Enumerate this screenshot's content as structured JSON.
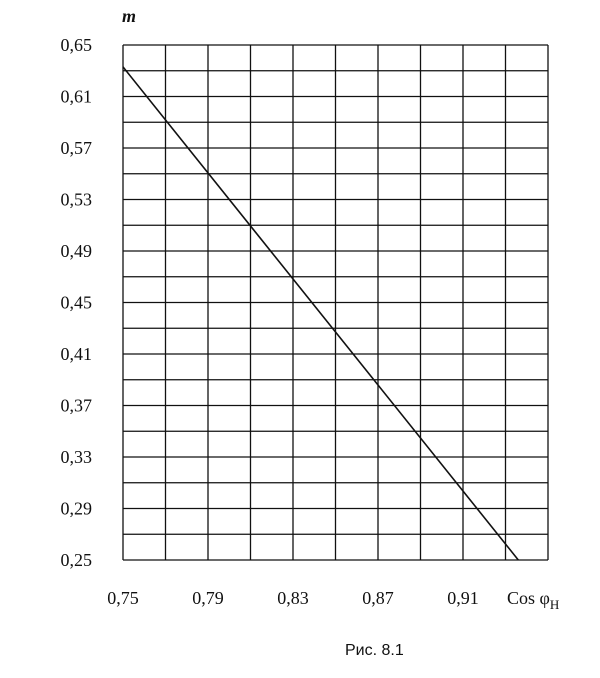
{
  "chart_data": {
    "type": "line",
    "ylabel": "m",
    "xlabel_main": "Cos φ",
    "xlabel_sub": "Н",
    "caption": "Рис. 8.1",
    "xlim": [
      0.75,
      0.95
    ],
    "ylim": [
      0.25,
      0.65
    ],
    "x_ticks": [
      "0,75",
      "0,79",
      "0,83",
      "0,87",
      "0,91"
    ],
    "x_tick_values": [
      0.75,
      0.79,
      0.83,
      0.87,
      0.91
    ],
    "y_ticks": [
      "0,65",
      "0,61",
      "0,57",
      "0,53",
      "0,49",
      "0,45",
      "0,41",
      "0,37",
      "0,33",
      "0,29",
      "0,25"
    ],
    "y_tick_values": [
      0.65,
      0.61,
      0.57,
      0.53,
      0.49,
      0.45,
      0.41,
      0.37,
      0.33,
      0.29,
      0.25
    ],
    "grid": true,
    "series": [
      {
        "x": [
          0.75,
          0.936
        ],
        "y": [
          0.633,
          0.25
        ]
      }
    ],
    "colors": {
      "line": "#111111",
      "grid": "#111111"
    }
  }
}
